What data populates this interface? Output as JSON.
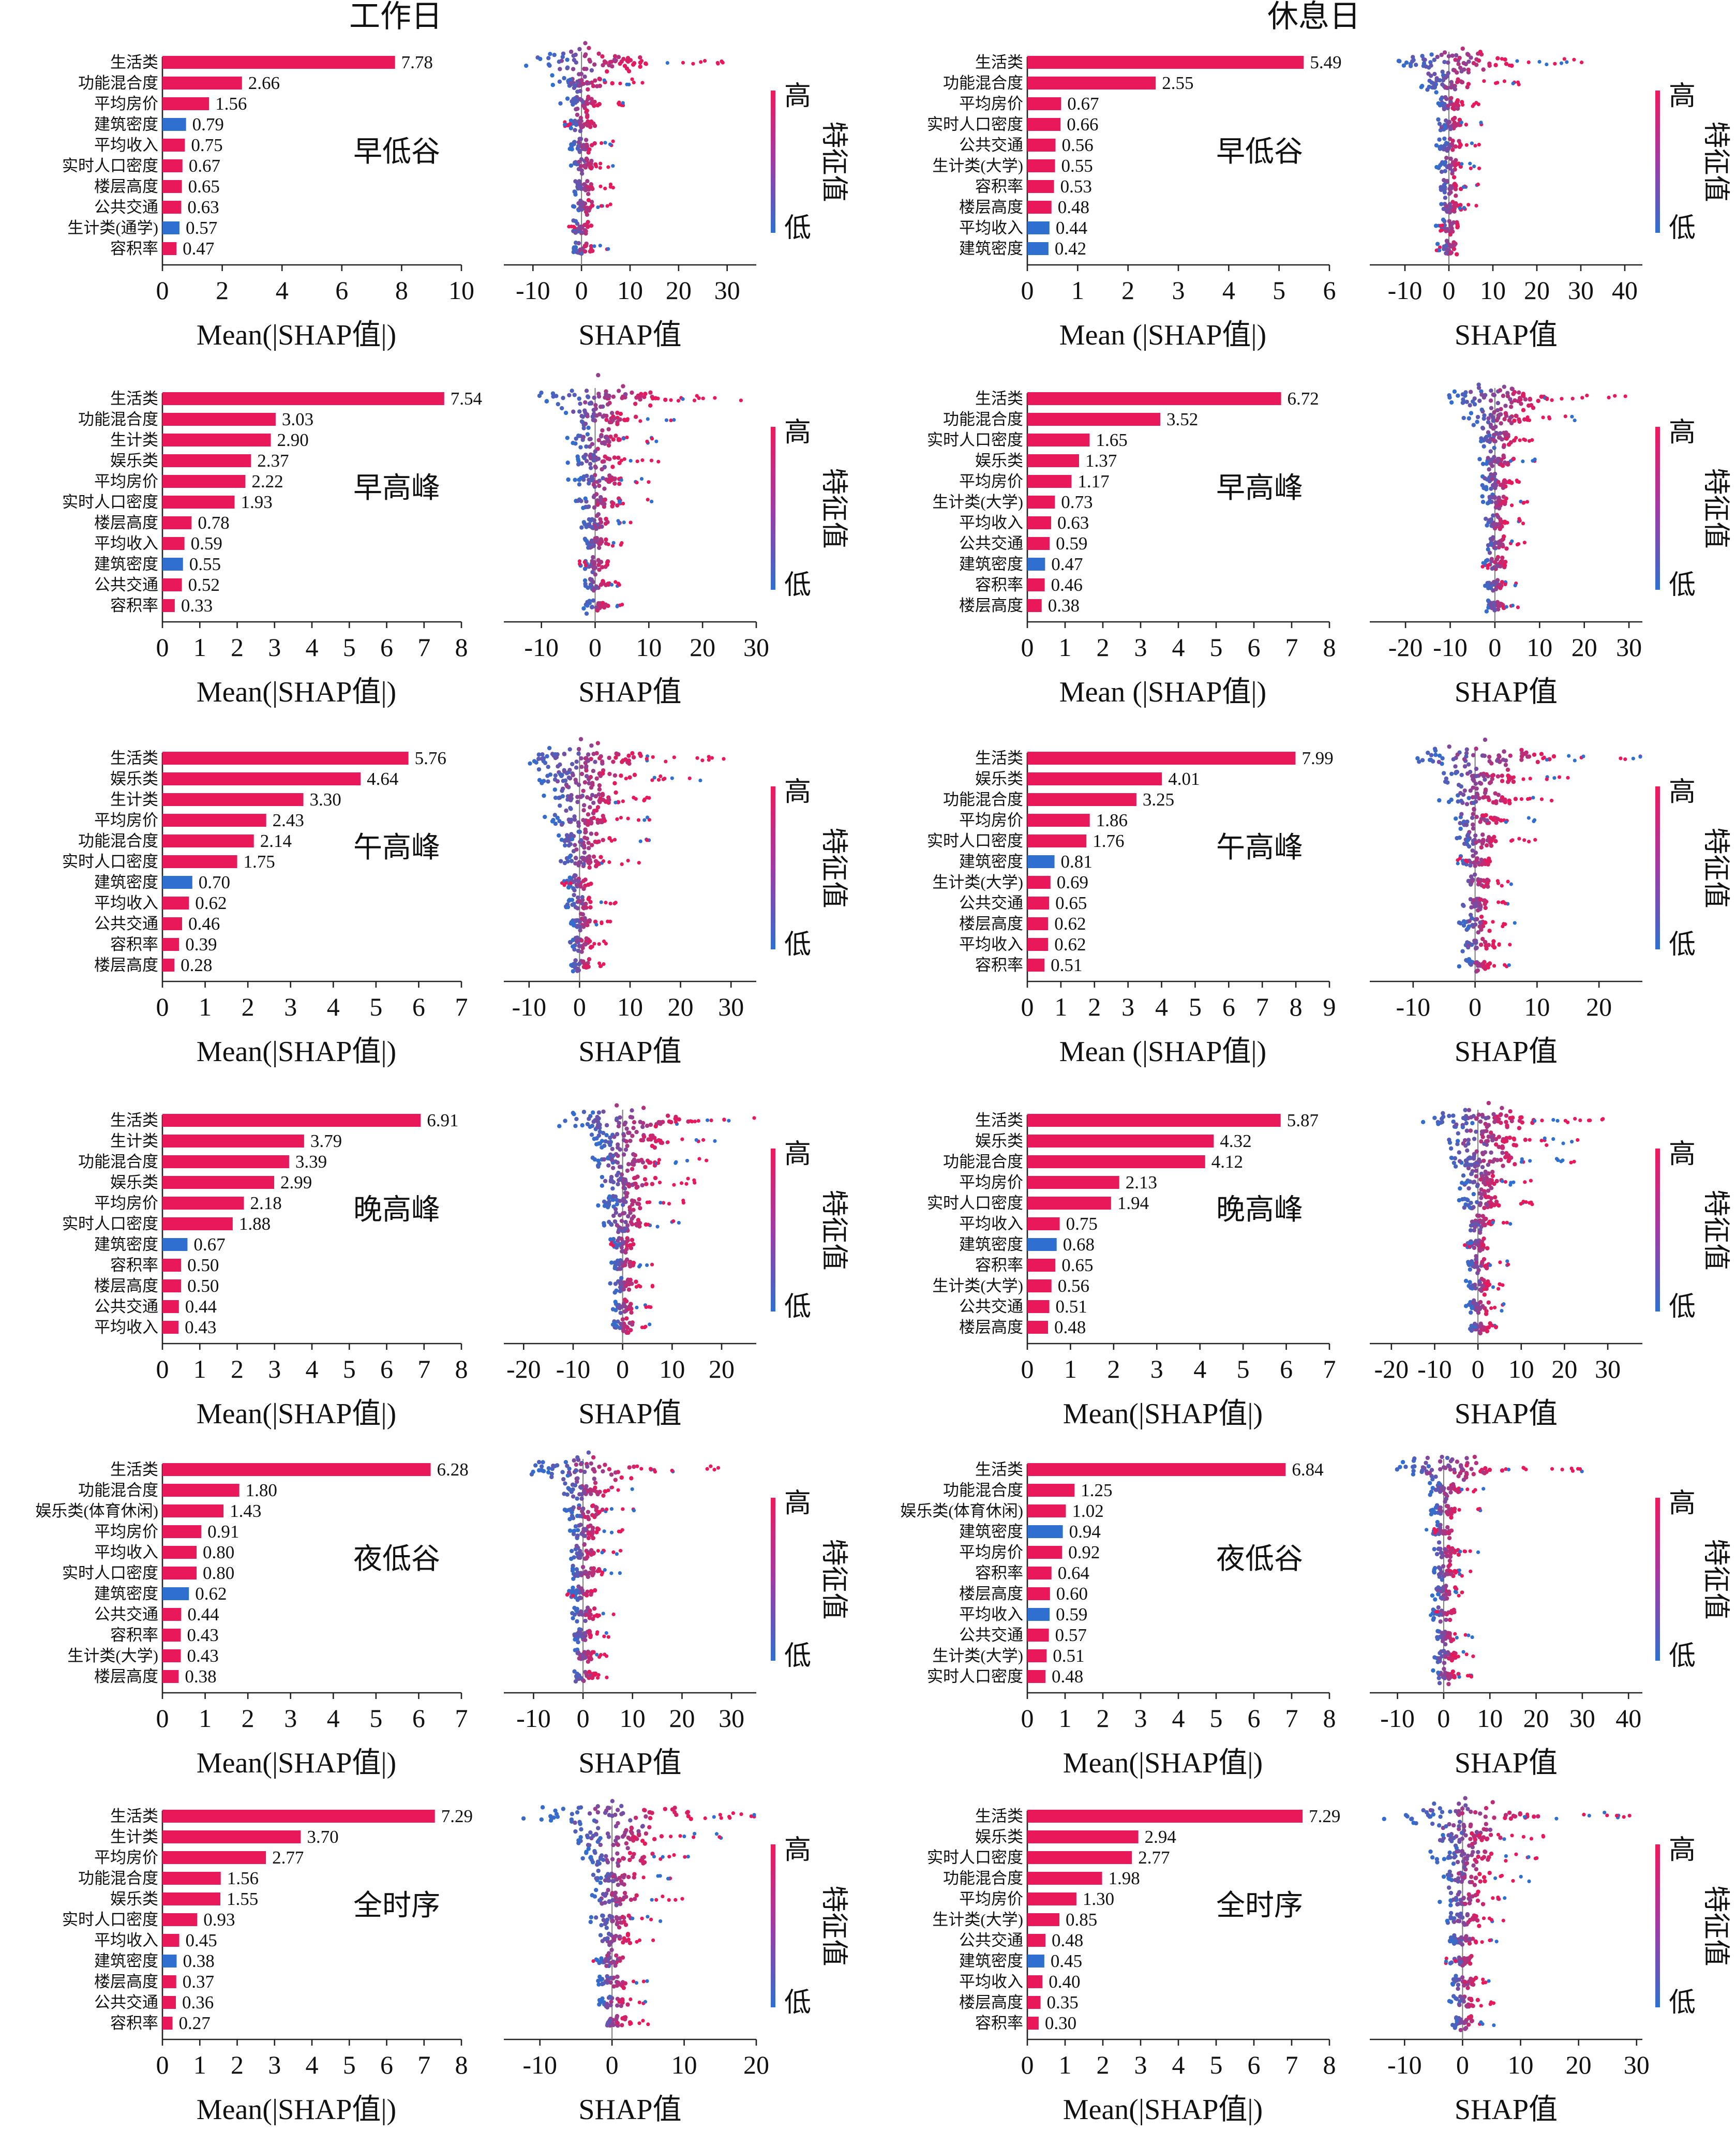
{
  "titles": [
    "工作日",
    "休息日"
  ],
  "bar_xlabel_left": "Mean(|SHAP值|)",
  "bar_xlabel_right": "Mean (|SHAP值|)",
  "swarm_xlabel": "SHAP值",
  "colorbar": {
    "high": "高",
    "low": "低",
    "label": "特征值"
  },
  "colors": {
    "high": "#e8185a",
    "low": "#2f6fcf"
  },
  "chart_data": [
    {
      "type": "bar",
      "group": "工作日",
      "period": "早低谷",
      "xlabel": "Mean(|SHAP值|)",
      "xlim": [
        0,
        10
      ],
      "ticks": [
        0,
        2,
        4,
        6,
        8,
        10
      ],
      "categories": [
        "生活类",
        "功能混合度",
        "平均房价",
        "建筑密度",
        "平均收入",
        "实时人口密度",
        "楼层高度",
        "公共交通",
        "生计类(通学)",
        "容积率"
      ],
      "values": [
        7.78,
        2.66,
        1.56,
        0.79,
        0.75,
        0.67,
        0.65,
        0.63,
        0.57,
        0.47
      ],
      "low_features": [
        "建筑密度",
        "生计类(通学)"
      ],
      "swarm": {
        "xlabel": "SHAP值",
        "xlim": [
          -16,
          36
        ],
        "ticks": [
          -10,
          0,
          10,
          20,
          30
        ]
      }
    },
    {
      "type": "bar",
      "group": "休息日",
      "period": "早低谷",
      "xlabel": "Mean (|SHAP值|)",
      "xlim": [
        0,
        6
      ],
      "ticks": [
        0,
        1,
        2,
        3,
        4,
        5,
        6
      ],
      "categories": [
        "生活类",
        "功能混合度",
        "平均房价",
        "实时人口密度",
        "公共交通",
        "生计类(大学)",
        "容积率",
        "楼层高度",
        "平均收入",
        "建筑密度"
      ],
      "values": [
        5.49,
        2.55,
        0.67,
        0.66,
        0.56,
        0.55,
        0.53,
        0.48,
        0.44,
        0.42
      ],
      "low_features": [
        "平均收入",
        "建筑密度"
      ],
      "swarm": {
        "xlabel": "SHAP值",
        "xlim": [
          -18,
          44
        ],
        "ticks": [
          -10,
          0,
          10,
          20,
          30,
          40
        ]
      }
    },
    {
      "type": "bar",
      "group": "工作日",
      "period": "早高峰",
      "xlabel": "Mean(|SHAP值|)",
      "xlim": [
        0,
        8
      ],
      "ticks": [
        0,
        1,
        2,
        3,
        4,
        5,
        6,
        7,
        8
      ],
      "categories": [
        "生活类",
        "功能混合度",
        "生计类",
        "娱乐类",
        "平均房价",
        "实时人口密度",
        "楼层高度",
        "平均收入",
        "建筑密度",
        "公共交通",
        "容积率"
      ],
      "values": [
        7.54,
        3.03,
        2.9,
        2.37,
        2.22,
        1.93,
        0.78,
        0.59,
        0.55,
        0.52,
        0.33
      ],
      "low_features": [
        "建筑密度"
      ],
      "swarm": {
        "xlabel": "SHAP值",
        "xlim": [
          -17,
          30
        ],
        "ticks": [
          -10,
          0,
          10,
          20,
          30
        ]
      }
    },
    {
      "type": "bar",
      "group": "休息日",
      "period": "早高峰",
      "xlabel": "Mean (|SHAP值|)",
      "xlim": [
        0,
        8
      ],
      "ticks": [
        0,
        1,
        2,
        3,
        4,
        5,
        6,
        7,
        8
      ],
      "categories": [
        "生活类",
        "功能混合度",
        "实时人口密度",
        "娱乐类",
        "平均房价",
        "生计类(大学)",
        "平均收入",
        "公共交通",
        "建筑密度",
        "容积率",
        "楼层高度"
      ],
      "values": [
        6.72,
        3.52,
        1.65,
        1.37,
        1.17,
        0.73,
        0.63,
        0.59,
        0.47,
        0.46,
        0.38
      ],
      "low_features": [
        "建筑密度"
      ],
      "swarm": {
        "xlabel": "SHAP值",
        "xlim": [
          -28,
          33
        ],
        "ticks": [
          -20,
          -10,
          0,
          10,
          20,
          30
        ]
      }
    },
    {
      "type": "bar",
      "group": "工作日",
      "period": "午高峰",
      "xlabel": "Mean(|SHAP值|)",
      "xlim": [
        0,
        7
      ],
      "ticks": [
        0,
        1,
        2,
        3,
        4,
        5,
        6,
        7
      ],
      "categories": [
        "生活类",
        "娱乐类",
        "生计类",
        "平均房价",
        "功能混合度",
        "实时人口密度",
        "建筑密度",
        "平均收入",
        "公共交通",
        "容积率",
        "楼层高度"
      ],
      "values": [
        5.76,
        4.64,
        3.3,
        2.43,
        2.14,
        1.75,
        0.7,
        0.62,
        0.46,
        0.39,
        0.28
      ],
      "low_features": [
        "建筑密度"
      ],
      "swarm": {
        "xlabel": "SHAP值",
        "xlim": [
          -15,
          35
        ],
        "ticks": [
          -10,
          0,
          10,
          20,
          30
        ]
      }
    },
    {
      "type": "bar",
      "group": "休息日",
      "period": "午高峰",
      "xlabel": "Mean (|SHAP值|)",
      "xlim": [
        0,
        9
      ],
      "ticks": [
        0,
        1,
        2,
        3,
        4,
        5,
        6,
        7,
        8,
        9
      ],
      "categories": [
        "生活类",
        "娱乐类",
        "功能混合度",
        "平均房价",
        "实时人口密度",
        "建筑密度",
        "生计类(大学)",
        "公共交通",
        "楼层高度",
        "平均收入",
        "容积率"
      ],
      "values": [
        7.99,
        4.01,
        3.25,
        1.86,
        1.76,
        0.81,
        0.69,
        0.65,
        0.62,
        0.62,
        0.51
      ],
      "low_features": [
        "建筑密度"
      ],
      "swarm": {
        "xlabel": "SHAP值",
        "xlim": [
          -17,
          27
        ],
        "ticks": [
          -10,
          0,
          10,
          20
        ]
      }
    },
    {
      "type": "bar",
      "group": "工作日",
      "period": "晚高峰",
      "xlabel": "Mean(|SHAP值|)",
      "xlim": [
        0,
        8
      ],
      "ticks": [
        0,
        1,
        2,
        3,
        4,
        5,
        6,
        7,
        8
      ],
      "categories": [
        "生活类",
        "生计类",
        "功能混合度",
        "娱乐类",
        "平均房价",
        "实时人口密度",
        "建筑密度",
        "容积率",
        "楼层高度",
        "公共交通",
        "平均收入"
      ],
      "values": [
        6.91,
        3.79,
        3.39,
        2.99,
        2.18,
        1.88,
        0.67,
        0.5,
        0.5,
        0.44,
        0.43
      ],
      "low_features": [
        "建筑密度"
      ],
      "swarm": {
        "xlabel": "SHAP值",
        "xlim": [
          -24,
          27
        ],
        "ticks": [
          -20,
          -10,
          0,
          10,
          20
        ]
      }
    },
    {
      "type": "bar",
      "group": "休息日",
      "period": "晚高峰",
      "xlabel": "Mean(|SHAP值|)",
      "xlim": [
        0,
        7
      ],
      "ticks": [
        0,
        1,
        2,
        3,
        4,
        5,
        6,
        7
      ],
      "categories": [
        "生活类",
        "娱乐类",
        "功能混合度",
        "平均房价",
        "实时人口密度",
        "平均收入",
        "建筑密度",
        "容积率",
        "生计类(大学)",
        "公共交通",
        "楼层高度"
      ],
      "values": [
        5.87,
        4.32,
        4.12,
        2.13,
        1.94,
        0.75,
        0.68,
        0.65,
        0.56,
        0.51,
        0.48
      ],
      "low_features": [
        "建筑密度"
      ],
      "swarm": {
        "xlabel": "SHAP值",
        "xlim": [
          -25,
          38
        ],
        "ticks": [
          -20,
          -10,
          0,
          10,
          20,
          30
        ]
      }
    },
    {
      "type": "bar",
      "group": "工作日",
      "period": "夜低谷",
      "xlabel": "Mean(|SHAP值|)",
      "xlim": [
        0,
        7
      ],
      "ticks": [
        0,
        1,
        2,
        3,
        4,
        5,
        6,
        7
      ],
      "categories": [
        "生活类",
        "功能混合度",
        "娱乐类(体育休闲)",
        "平均房价",
        "平均收入",
        "实时人口密度",
        "建筑密度",
        "公共交通",
        "容积率",
        "生计类(大学)",
        "楼层高度"
      ],
      "values": [
        6.28,
        1.8,
        1.43,
        0.91,
        0.8,
        0.8,
        0.62,
        0.44,
        0.43,
        0.43,
        0.38
      ],
      "low_features": [
        "建筑密度"
      ],
      "swarm": {
        "xlabel": "SHAP值",
        "xlim": [
          -16,
          35
        ],
        "ticks": [
          -10,
          0,
          10,
          20,
          30
        ]
      }
    },
    {
      "type": "bar",
      "group": "休息日",
      "period": "夜低谷",
      "xlabel": "Mean(|SHAP值|)",
      "xlim": [
        0,
        8
      ],
      "ticks": [
        0,
        1,
        2,
        3,
        4,
        5,
        6,
        7,
        8
      ],
      "categories": [
        "生活类",
        "功能混合度",
        "娱乐类(体育休闲)",
        "建筑密度",
        "平均房价",
        "容积率",
        "楼层高度",
        "平均收入",
        "公共交通",
        "生计类(大学)",
        "实时人口密度"
      ],
      "values": [
        6.84,
        1.25,
        1.02,
        0.94,
        0.92,
        0.64,
        0.6,
        0.59,
        0.57,
        0.51,
        0.48
      ],
      "low_features": [
        "建筑密度",
        "平均收入"
      ],
      "swarm": {
        "xlabel": "SHAP值",
        "xlim": [
          -16,
          43
        ],
        "ticks": [
          -10,
          0,
          10,
          20,
          30,
          40
        ]
      }
    },
    {
      "type": "bar",
      "group": "工作日",
      "period": "全时序",
      "xlabel": "Mean(|SHAP值|)",
      "xlim": [
        0,
        8
      ],
      "ticks": [
        0,
        1,
        2,
        3,
        4,
        5,
        6,
        7,
        8
      ],
      "categories": [
        "生活类",
        "生计类",
        "平均房价",
        "功能混合度",
        "娱乐类",
        "实时人口密度",
        "平均收入",
        "建筑密度",
        "楼层高度",
        "公共交通",
        "容积率"
      ],
      "values": [
        7.29,
        3.7,
        2.77,
        1.56,
        1.55,
        0.93,
        0.45,
        0.38,
        0.37,
        0.36,
        0.27
      ],
      "low_features": [
        "建筑密度"
      ],
      "swarm": {
        "xlabel": "SHAP值",
        "xlim": [
          -15,
          20
        ],
        "ticks": [
          -10,
          0,
          10,
          20
        ]
      }
    },
    {
      "type": "bar",
      "group": "休息日",
      "period": "全时序",
      "xlabel": "Mean(|SHAP值|)",
      "xlim": [
        0,
        8
      ],
      "ticks": [
        0,
        1,
        2,
        3,
        4,
        5,
        6,
        7,
        8
      ],
      "categories": [
        "生活类",
        "娱乐类",
        "实时人口密度",
        "功能混合度",
        "平均房价",
        "生计类(大学)",
        "公共交通",
        "建筑密度",
        "平均收入",
        "楼层高度",
        "容积率"
      ],
      "values": [
        7.29,
        2.94,
        2.77,
        1.98,
        1.3,
        0.85,
        0.48,
        0.45,
        0.4,
        0.35,
        0.3
      ],
      "low_features": [
        "建筑密度"
      ],
      "swarm": {
        "xlabel": "SHAP值",
        "xlim": [
          -16,
          31
        ],
        "ticks": [
          -10,
          0,
          10,
          20,
          30
        ]
      }
    }
  ]
}
